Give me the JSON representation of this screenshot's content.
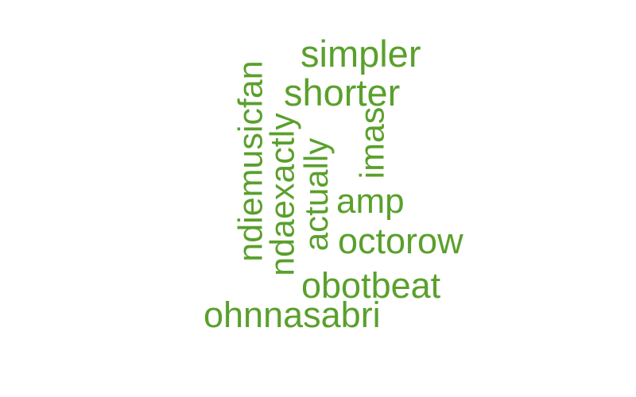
{
  "wordcloud": {
    "color": "#5aa02c",
    "words": {
      "simpler": "simpler",
      "shorter": "shorter",
      "ndiemusicfan": "ndiemusicfan",
      "ndaexactly": "ndaexactly",
      "actually": "actually",
      "imas": "imas",
      "amp": "amp",
      "octorow": "octorow",
      "obotbeat": "obotbeat",
      "ohnnasabri": "ohnnasabri"
    }
  }
}
